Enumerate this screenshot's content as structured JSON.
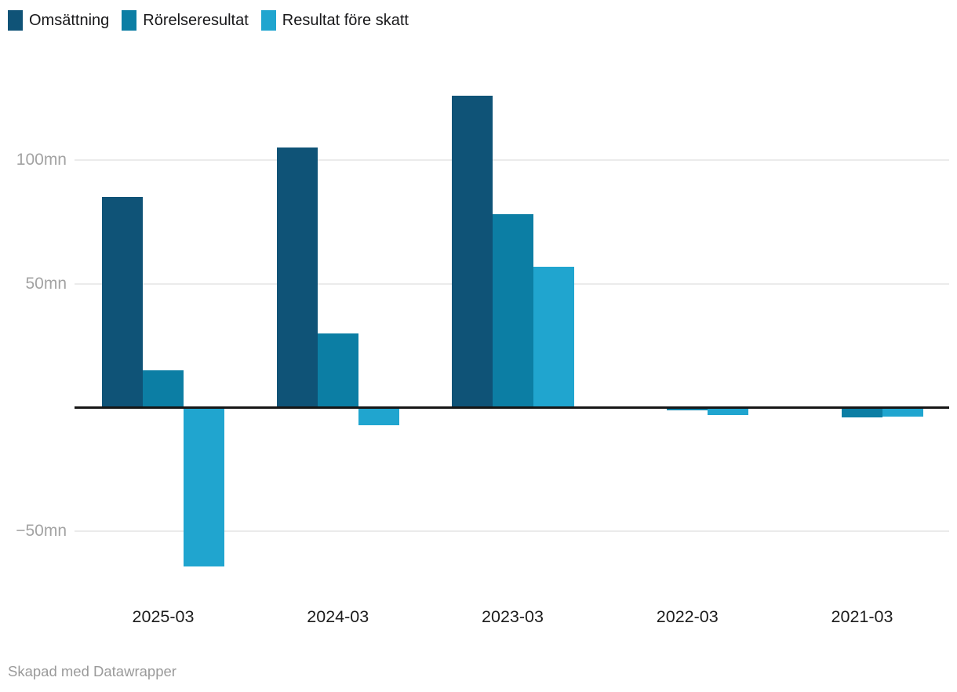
{
  "legend": {
    "items": [
      {
        "label": "Omsättning",
        "color": "#0f5377"
      },
      {
        "label": "Rörelseresultat",
        "color": "#0c7ea4"
      },
      {
        "label": "Resultat före skatt",
        "color": "#20a5cf"
      }
    ]
  },
  "chart_data": {
    "type": "bar",
    "title": "",
    "xlabel": "",
    "ylabel": "",
    "unit": "mn",
    "categories": [
      "2025-03",
      "2024-03",
      "2023-03",
      "2022-03",
      "2021-03"
    ],
    "series": [
      {
        "name": "Omsättning",
        "color": "#0f5377",
        "values": [
          85,
          105,
          126,
          0,
          0
        ]
      },
      {
        "name": "Rörelseresultat",
        "color": "#0c7ea4",
        "values": [
          15,
          30,
          78,
          -1,
          -4
        ]
      },
      {
        "name": "Resultat före skatt",
        "color": "#20a5cf",
        "values": [
          -64,
          -7,
          57,
          -3,
          -3.5
        ]
      }
    ],
    "y_ticks": [
      {
        "value": 100,
        "label": "100mn"
      },
      {
        "value": 50,
        "label": "50mn"
      },
      {
        "value": 0,
        "label": ""
      },
      {
        "value": -50,
        "label": "−50mn"
      }
    ],
    "ylim": [
      -75,
      140
    ],
    "grid": true,
    "legend_position": "top-left",
    "baseline": 0
  },
  "footer": {
    "credit": "Skapad med Datawrapper"
  }
}
